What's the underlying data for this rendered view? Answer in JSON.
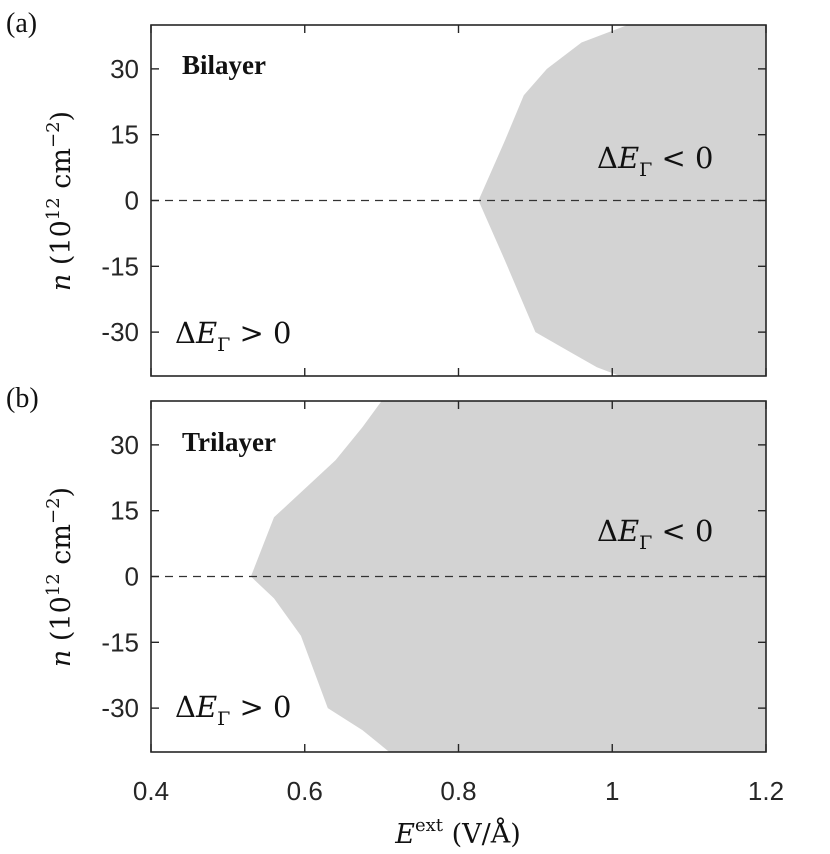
{
  "chart_data": [
    {
      "type": "area",
      "panel_label": "(a)",
      "title": "Bilayer",
      "ylabel": "n (10^12 cm^-2)",
      "ylim": [
        -40,
        40
      ],
      "xlim": [
        0.4,
        1.2
      ],
      "yticks": [
        30,
        15,
        0,
        -15,
        -30
      ],
      "ytick_labels": [
        "30",
        "15",
        "0",
        "-15",
        "-30"
      ],
      "grid": false,
      "reference_line": {
        "y": 0,
        "style": "dashed"
      },
      "shaded_region_label": "ΔEΓ < 0",
      "unshaded_region_label": "ΔEΓ > 0",
      "boundary": {
        "x": [
          1.01,
          0.98,
          0.95,
          0.9,
          0.86,
          0.826,
          0.86,
          0.885,
          0.915,
          0.96,
          1.02
        ],
        "y": [
          -40,
          -38,
          -35,
          -30,
          -13.5,
          0,
          13.5,
          24,
          30,
          36,
          40
        ]
      }
    },
    {
      "type": "area",
      "panel_label": "(b)",
      "title": "Trilayer",
      "xlabel": "E^ext (V/Å)",
      "ylabel": "n (10^12 cm^-2)",
      "ylim": [
        -40,
        40
      ],
      "xlim": [
        0.4,
        1.2
      ],
      "xticks": [
        0.4,
        0.6,
        0.8,
        1,
        1.2
      ],
      "xtick_labels": [
        "0.4",
        "0.6",
        "0.8",
        "1",
        "1.2"
      ],
      "yticks": [
        30,
        15,
        0,
        -15,
        -30
      ],
      "ytick_labels": [
        "30",
        "15",
        "0",
        "-15",
        "-30"
      ],
      "grid": false,
      "reference_line": {
        "y": 0,
        "style": "dashed"
      },
      "shaded_region_label": "ΔEΓ < 0",
      "unshaded_region_label": "ΔEΓ > 0",
      "boundary": {
        "x": [
          0.71,
          0.675,
          0.63,
          0.595,
          0.56,
          0.53,
          0.56,
          0.6,
          0.64,
          0.675,
          0.7
        ],
        "y": [
          -40,
          -35,
          -30,
          -13.5,
          -5,
          0,
          13.5,
          20,
          26.5,
          34,
          40
        ]
      }
    }
  ],
  "colors": {
    "shade": "#d3d3d3",
    "axes": "#262626",
    "dashed": "#333333"
  },
  "text": {
    "panel_a_letter": "(a)",
    "panel_b_letter": "(b)",
    "title_a": "Bilayer",
    "title_b": "Trilayer",
    "delta": "Δ",
    "e_italic": "E",
    "gamma": "Γ",
    "lt_zero": " < 0",
    "gt_zero": " > 0",
    "n_italic": "n",
    "ylabel_open": " (10",
    "ylabel_exp": "12",
    "ylabel_unit": " cm",
    "ylabel_neg_exp": "−2",
    "ylabel_close": ")",
    "xlabel_E": "E",
    "xlabel_sup": "ext",
    "xlabel_units": " (V/Å)"
  }
}
